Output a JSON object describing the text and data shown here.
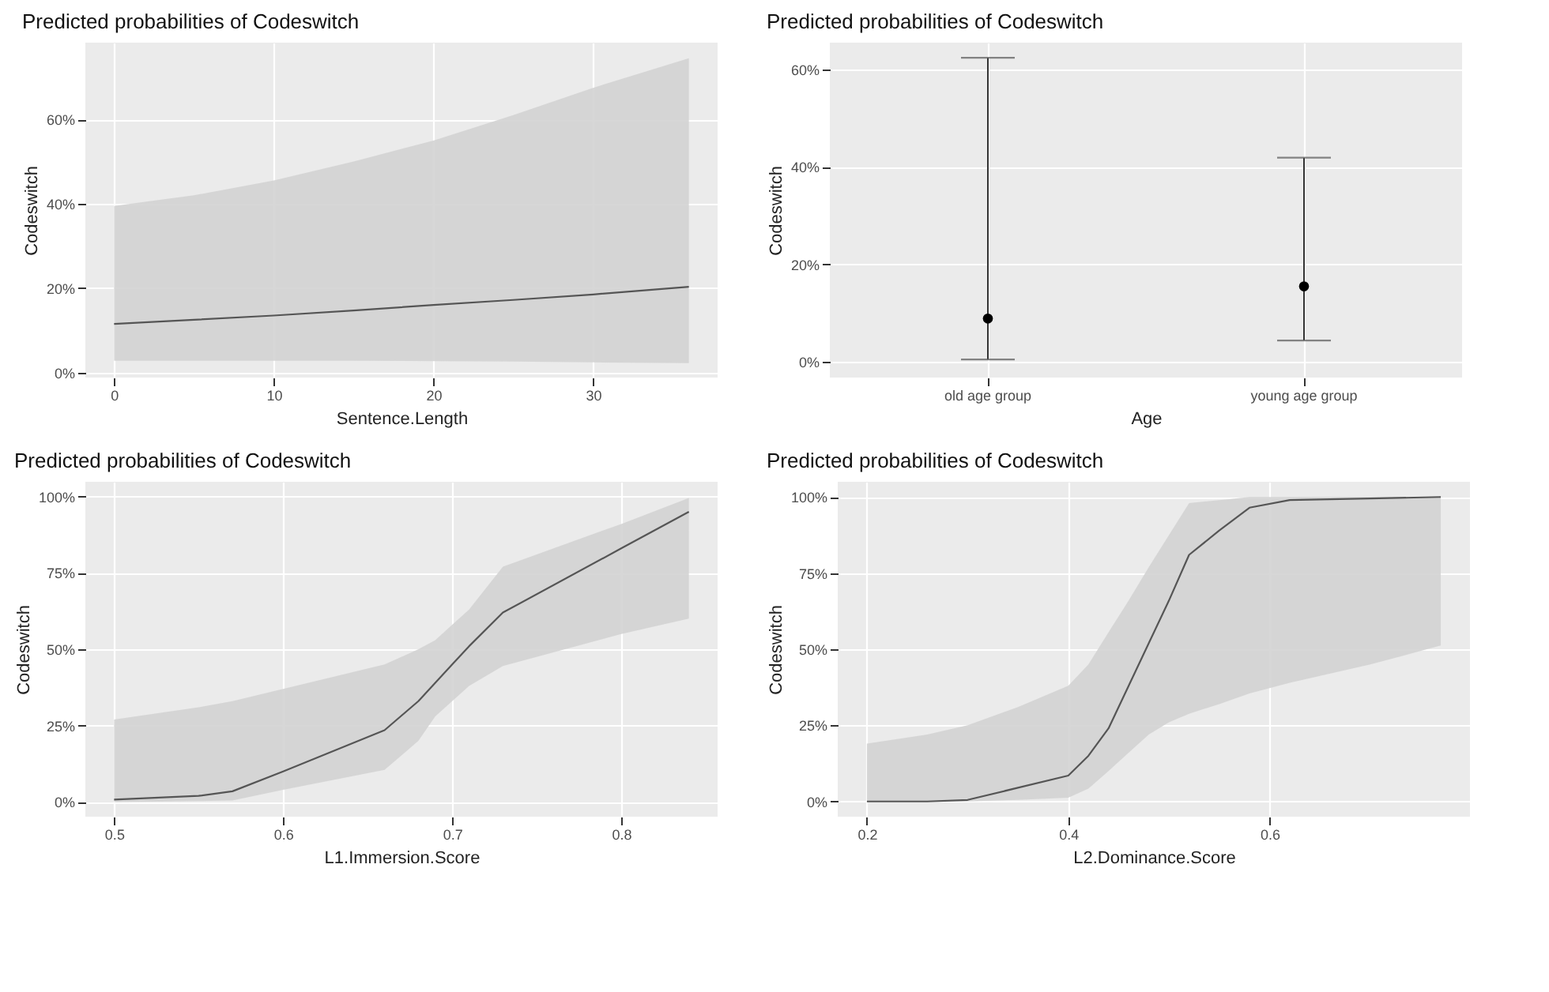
{
  "chart_data": [
    {
      "type": "line",
      "title": "Predicted probabilities of Codeswitch",
      "xlabel": "Sentence.Length",
      "ylabel": "Codeswitch",
      "xlim": [
        -1.8,
        37.8
      ],
      "xticks": [
        0,
        10,
        20,
        30
      ],
      "ylim": [
        -1.2,
        78.2
      ],
      "yticks": [
        {
          "value": 0,
          "label": "0%"
        },
        {
          "value": 20,
          "label": "20%"
        },
        {
          "value": 40,
          "label": "40%"
        },
        {
          "value": 60,
          "label": "60%"
        }
      ],
      "grid": true,
      "series": [
        {
          "color": "#555555",
          "x": [
            0,
            5,
            10,
            15,
            20,
            25,
            30,
            36
          ],
          "values": [
            11.5,
            12.5,
            13.5,
            14.7,
            16,
            17.2,
            18.5,
            20.3
          ],
          "lower": [
            2.8,
            2.8,
            2.8,
            2.8,
            2.7,
            2.6,
            2.4,
            2.2
          ],
          "upper": [
            39.5,
            42,
            45.5,
            50,
            55,
            61,
            67.5,
            74.5
          ]
        }
      ]
    },
    {
      "type": "scatter",
      "title": "Predicted probabilities of Codeswitch",
      "xlabel": "Age",
      "ylabel": "Codeswitch",
      "categories": [
        "old age group",
        "young age group"
      ],
      "ylim": [
        -3.2,
        65.5
      ],
      "yticks": [
        {
          "value": 0,
          "label": "0%"
        },
        {
          "value": 20,
          "label": "20%"
        },
        {
          "value": 40,
          "label": "40%"
        },
        {
          "value": 60,
          "label": "60%"
        }
      ],
      "grid": true,
      "marker": "circle",
      "series": [
        {
          "color": "#000000",
          "values": [
            8.9,
            15.5
          ],
          "errors": [
            [
              0.5,
              62.4
            ],
            [
              4.4,
              41.9
            ]
          ]
        }
      ]
    },
    {
      "type": "line",
      "title": "Predicted probabilities of Codeswitch",
      "xlabel": "L1.Immersion.Score",
      "ylabel": "Codeswitch",
      "xlim": [
        0.483,
        0.857
      ],
      "xticks": [
        0.5,
        0.6,
        0.7,
        0.8
      ],
      "ylim": [
        -4.8,
        104.8
      ],
      "yticks": [
        {
          "value": 0,
          "label": "0%"
        },
        {
          "value": 25,
          "label": "25%"
        },
        {
          "value": 50,
          "label": "50%"
        },
        {
          "value": 75,
          "label": "75%"
        },
        {
          "value": 100,
          "label": "100%"
        }
      ],
      "grid": true,
      "series": [
        {
          "color": "#555555",
          "x": [
            0.5,
            0.55,
            0.57,
            0.6,
            0.66,
            0.68,
            0.69,
            0.7,
            0.71,
            0.73,
            0.8,
            0.84
          ],
          "values": [
            0.8,
            2,
            3.5,
            10,
            23.5,
            33,
            39,
            45,
            51,
            62,
            83,
            95
          ],
          "lower": [
            0,
            0.3,
            0.5,
            4,
            10.5,
            20,
            28,
            33,
            38,
            44.5,
            55,
            60
          ],
          "upper": [
            27,
            31,
            33,
            37,
            45,
            50,
            53,
            58,
            63,
            77,
            91,
            99.5
          ]
        }
      ]
    },
    {
      "type": "line",
      "title": "Predicted probabilities of Codeswitch",
      "xlabel": "L2.Dominance.Score",
      "ylabel": "Codeswitch",
      "xlim": [
        0.171,
        0.799
      ],
      "xticks": [
        0.2,
        0.4,
        0.6
      ],
      "ylim": [
        -5,
        105
      ],
      "yticks": [
        {
          "value": 0,
          "label": "0%"
        },
        {
          "value": 25,
          "label": "25%"
        },
        {
          "value": 50,
          "label": "50%"
        },
        {
          "value": 75,
          "label": "75%"
        },
        {
          "value": 100,
          "label": "100%"
        }
      ],
      "grid": true,
      "series": [
        {
          "color": "#555555",
          "x": [
            0.2,
            0.26,
            0.3,
            0.35,
            0.4,
            0.42,
            0.44,
            0.46,
            0.48,
            0.5,
            0.52,
            0.55,
            0.58,
            0.62,
            0.7,
            0.77
          ],
          "values": [
            0,
            0,
            0.5,
            4.5,
            8.5,
            15,
            24,
            38,
            52,
            66,
            81,
            89,
            96.5,
            99,
            99.5,
            100
          ],
          "lower": [
            0,
            0,
            0,
            0.5,
            1.2,
            4.2,
            10,
            16,
            22,
            26,
            28.8,
            32,
            35.5,
            39,
            45,
            51.2
          ],
          "upper": [
            19,
            22,
            25,
            31,
            38,
            45,
            55.6,
            66,
            77,
            87.5,
            98,
            99,
            100,
            100,
            100,
            100
          ]
        }
      ]
    }
  ]
}
